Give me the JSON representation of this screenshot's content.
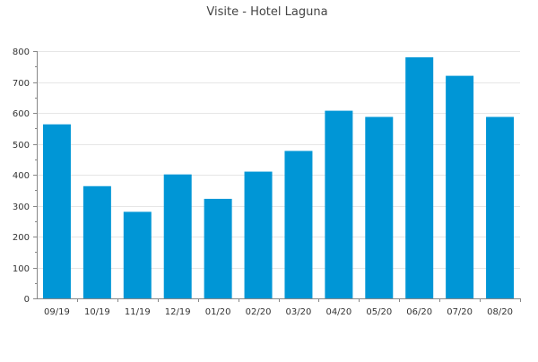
{
  "chart_data": {
    "type": "bar",
    "title": "Visite - Hotel Laguna",
    "xlabel": "",
    "ylabel": "",
    "categories": [
      "09/19",
      "10/19",
      "11/19",
      "12/19",
      "01/20",
      "02/20",
      "03/20",
      "04/20",
      "05/20",
      "06/20",
      "07/20",
      "08/20"
    ],
    "values": [
      563,
      363,
      280,
      401,
      322,
      410,
      477,
      607,
      587,
      780,
      720,
      587
    ],
    "ylim": [
      0,
      800
    ],
    "yticks": [
      0,
      100,
      200,
      300,
      400,
      500,
      600,
      700,
      800
    ],
    "grid": true,
    "legend": "none",
    "bar_color": "#0096d6"
  }
}
